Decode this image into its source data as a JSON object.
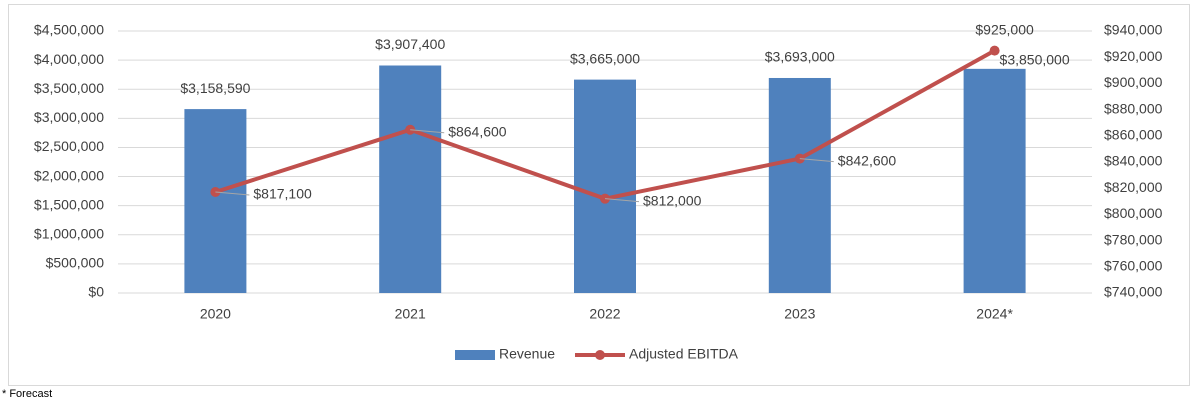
{
  "chart_data": {
    "type": "bar-line",
    "categories": [
      "2020",
      "2021",
      "2022",
      "2023",
      "2024*"
    ],
    "series": [
      {
        "name": "Revenue",
        "color": "#4f81bd",
        "type": "bar",
        "axis": "y",
        "values": [
          3158590,
          3907400,
          3665000,
          3693000,
          3850000
        ],
        "value_labels": [
          "$3,158,590",
          "$3,907,400",
          "$3,665,000",
          "$3,693,000",
          "$3,850,000"
        ]
      },
      {
        "name": "Adjusted EBITDA",
        "color": "#c0504d",
        "type": "line",
        "axis": "y2",
        "values": [
          817100,
          864600,
          812000,
          842600,
          925000
        ],
        "value_labels": [
          "$817,100",
          "$864,600",
          "$812,000",
          "$842,600",
          "$925,000"
        ]
      }
    ],
    "ylim": [
      0,
      4500000
    ],
    "yticks": [
      {
        "value": 0,
        "label": "$0"
      },
      {
        "value": 500000,
        "label": "$500,000"
      },
      {
        "value": 1000000,
        "label": "$1,000,000"
      },
      {
        "value": 1500000,
        "label": "$1,500,000"
      },
      {
        "value": 2000000,
        "label": "$2,000,000"
      },
      {
        "value": 2500000,
        "label": "$2,500,000"
      },
      {
        "value": 3000000,
        "label": "$3,000,000"
      },
      {
        "value": 3500000,
        "label": "$3,500,000"
      },
      {
        "value": 4000000,
        "label": "$4,000,000"
      },
      {
        "value": 4500000,
        "label": "$4,500,000"
      }
    ],
    "y2lim": [
      740000,
      940000
    ],
    "y2ticks": [
      {
        "value": 740000,
        "label": "$740,000"
      },
      {
        "value": 760000,
        "label": "$760,000"
      },
      {
        "value": 780000,
        "label": "$780,000"
      },
      {
        "value": 800000,
        "label": "$800,000"
      },
      {
        "value": 820000,
        "label": "$820,000"
      },
      {
        "value": 840000,
        "label": "$840,000"
      },
      {
        "value": 860000,
        "label": "$860,000"
      },
      {
        "value": 880000,
        "label": "$880,000"
      },
      {
        "value": 900000,
        "label": "$900,000"
      },
      {
        "value": 920000,
        "label": "$920,000"
      },
      {
        "value": 940000,
        "label": "$940,000"
      }
    ],
    "grid": true,
    "legend": "bottom"
  },
  "footnote": "* Forecast"
}
